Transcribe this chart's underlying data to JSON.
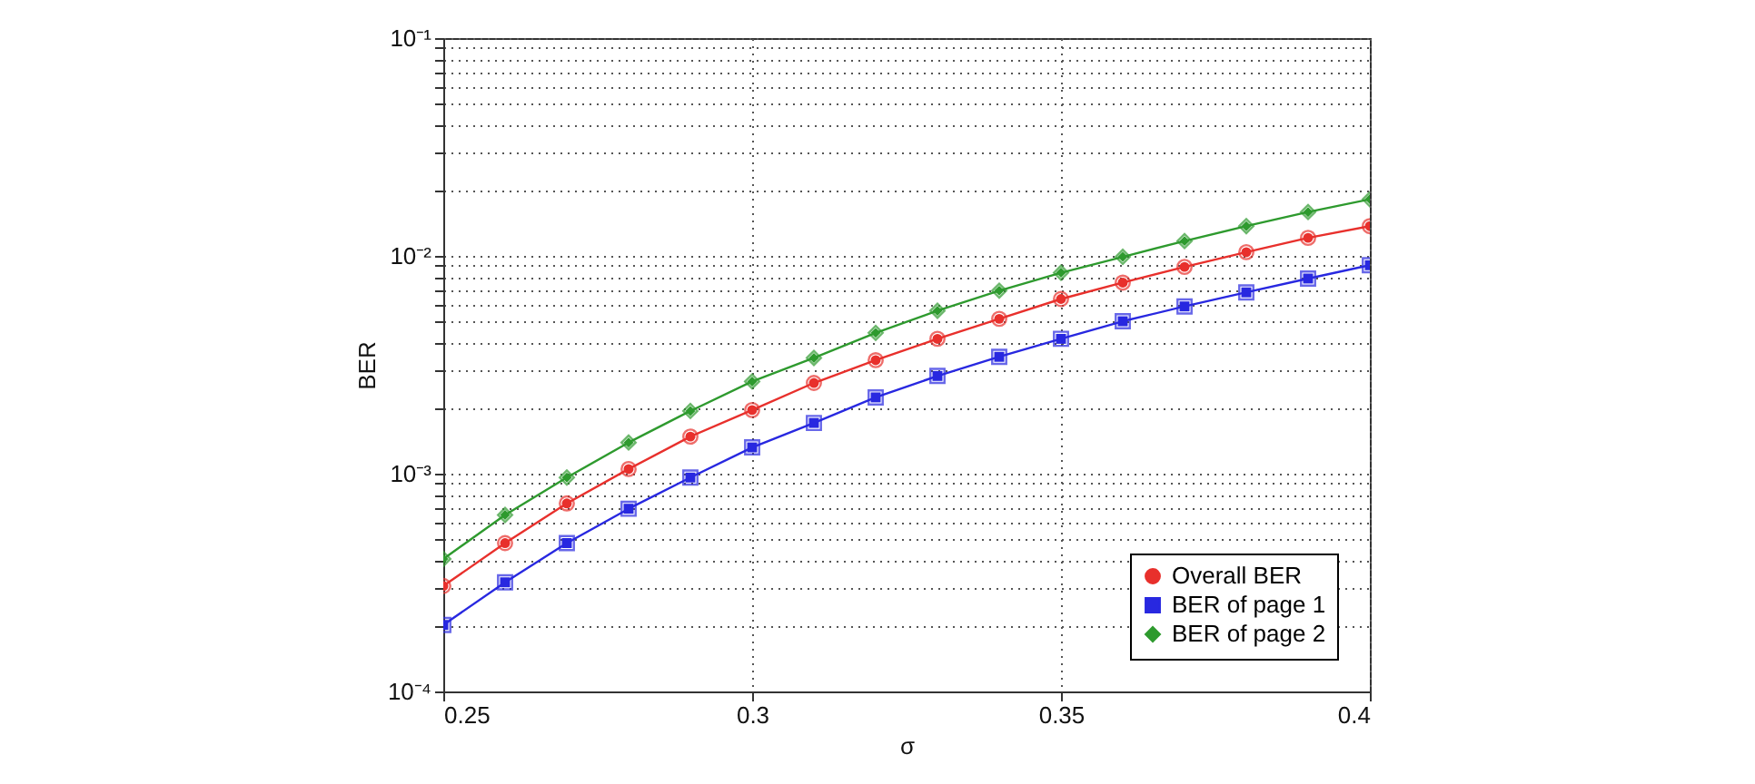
{
  "chart_data": {
    "type": "line",
    "xlabel": "σ",
    "ylabel": "BER",
    "log": "y",
    "grid": true,
    "legend": "bottom right",
    "line_style": "solid",
    "x": [
      0.25,
      0.26,
      0.27,
      0.28,
      0.29,
      0.3,
      0.31,
      0.32,
      0.33,
      0.34,
      0.35,
      0.36,
      0.37,
      0.38,
      0.39,
      0.4
    ],
    "xlim": [
      0.25,
      0.4
    ],
    "xticks": [
      0.25,
      0.3,
      0.35,
      0.4
    ],
    "ylim": [
      0.0001,
      0.1
    ],
    "yticks": [
      {
        "value": 0.0001,
        "label": "10⁻⁴"
      },
      {
        "value": 0.0002,
        "label": null
      },
      {
        "value": 0.0003,
        "label": null
      },
      {
        "value": 0.0004,
        "label": null
      },
      {
        "value": 0.0005,
        "label": null
      },
      {
        "value": 0.0006,
        "label": null
      },
      {
        "value": 0.0007,
        "label": null
      },
      {
        "value": 0.0008,
        "label": null
      },
      {
        "value": 0.0009,
        "label": null
      },
      {
        "value": 0.001,
        "label": "10⁻³"
      },
      {
        "value": 0.002,
        "label": null
      },
      {
        "value": 0.003,
        "label": null
      },
      {
        "value": 0.004,
        "label": null
      },
      {
        "value": 0.005,
        "label": null
      },
      {
        "value": 0.006,
        "label": null
      },
      {
        "value": 0.007,
        "label": null
      },
      {
        "value": 0.008,
        "label": null
      },
      {
        "value": 0.009,
        "label": null
      },
      {
        "value": 0.01,
        "label": "10⁻²"
      },
      {
        "value": 0.02,
        "label": null
      },
      {
        "value": 0.03,
        "label": null
      },
      {
        "value": 0.04,
        "label": null
      },
      {
        "value": 0.05,
        "label": null
      },
      {
        "value": 0.06,
        "label": null
      },
      {
        "value": 0.07,
        "label": null
      },
      {
        "value": 0.08,
        "label": null
      },
      {
        "value": 0.09,
        "label": null
      },
      {
        "value": 0.1,
        "label": "10⁻¹"
      }
    ],
    "series": [
      {
        "name": "Overall BER",
        "color": "#e8302c",
        "marker": "circle",
        "values": [
          0.000305,
          0.00048,
          0.00073,
          0.00105,
          0.00148,
          0.00196,
          0.00261,
          0.00332,
          0.00416,
          0.00514,
          0.00634,
          0.00754,
          0.0089,
          0.0104,
          0.0121,
          0.0137
        ]
      },
      {
        "name": "BER of page 1",
        "color": "#2828e0",
        "marker": "square",
        "values": [
          0.000202,
          0.000317,
          0.00048,
          0.00069,
          0.00096,
          0.00132,
          0.00171,
          0.00224,
          0.00281,
          0.00344,
          0.00416,
          0.00501,
          0.00586,
          0.0068,
          0.00787,
          0.00906
        ]
      },
      {
        "name": "BER of page 2",
        "color": "#2e9a2e",
        "marker": "diamond",
        "values": [
          0.000406,
          0.000646,
          0.00096,
          0.00139,
          0.00194,
          0.00265,
          0.0034,
          0.00443,
          0.0056,
          0.00692,
          0.00837,
          0.0099,
          0.0117,
          0.0137,
          0.0159,
          0.0182
        ]
      }
    ]
  }
}
